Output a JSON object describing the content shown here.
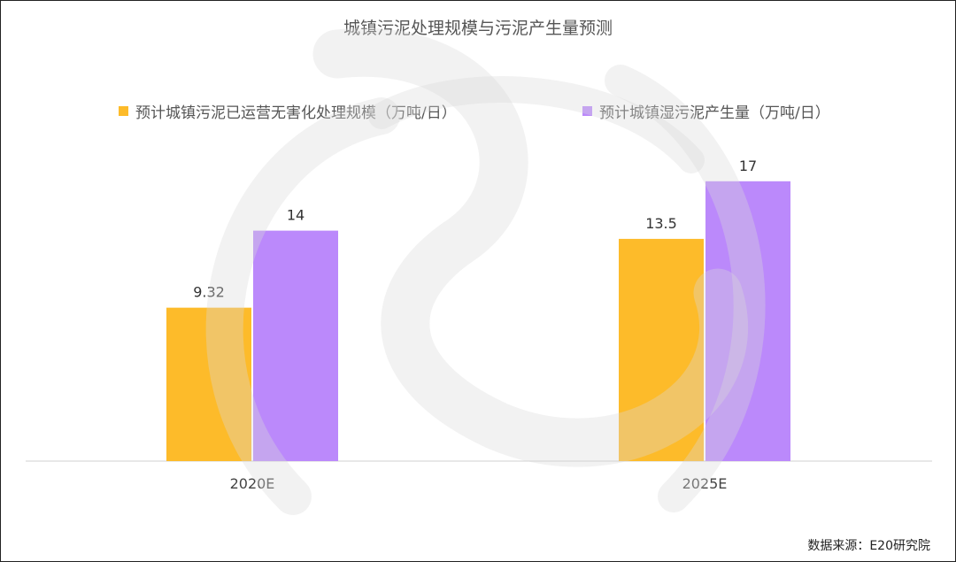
{
  "chart_data": {
    "type": "bar",
    "title": "城镇污泥处理规模与污泥产生量预测",
    "categories": [
      "2020E",
      "2025E"
    ],
    "series": [
      {
        "name": "预计城镇污泥已运营无害化处理规模（万吨/日）",
        "values": [
          9.32,
          13.5
        ],
        "color": "#FDBB2A",
        "labels": [
          "9.32",
          "13.5"
        ]
      },
      {
        "name": "预计城镇湿污泥产生量（万吨/日）",
        "values": [
          14,
          17
        ],
        "color": "#BB89FB",
        "labels": [
          "14",
          "17"
        ]
      }
    ],
    "ylim": [
      0,
      20
    ],
    "grid": false,
    "legend_position": "top",
    "source": "数据来源：E20研究院"
  }
}
